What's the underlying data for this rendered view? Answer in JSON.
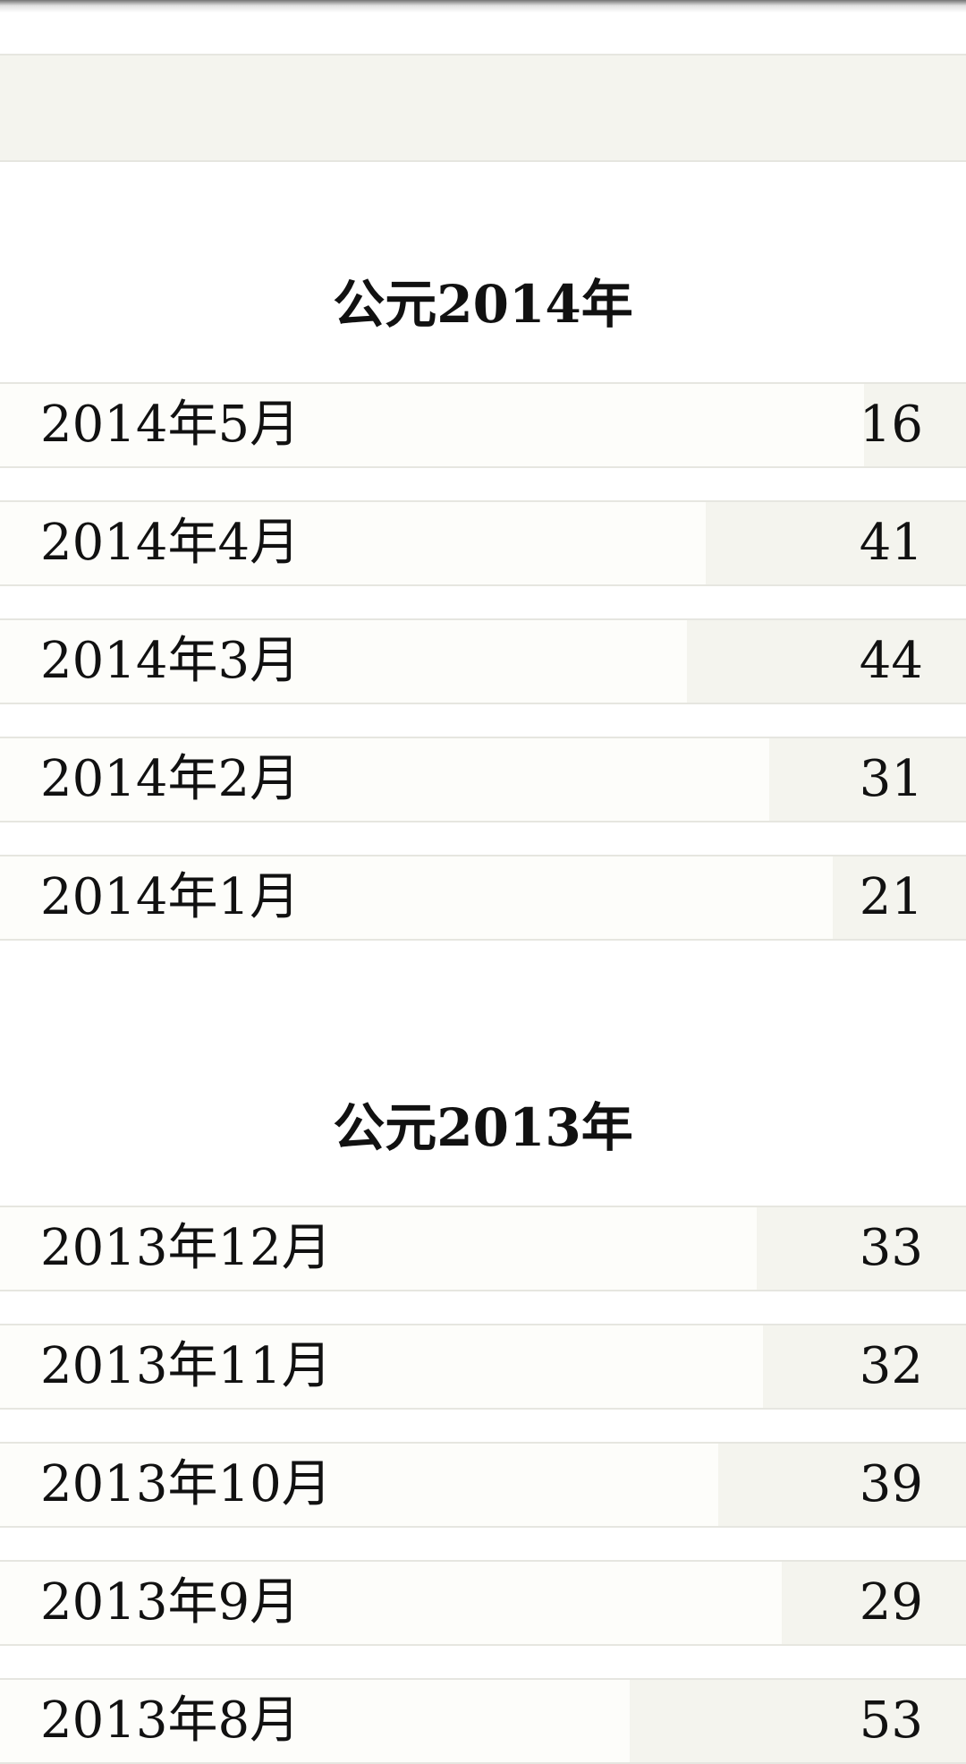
{
  "years": [
    {
      "title": "公元2014年",
      "months": [
        {
          "label": "2014年5月",
          "count": "16",
          "value": 16
        },
        {
          "label": "2014年4月",
          "count": "41",
          "value": 41
        },
        {
          "label": "2014年3月",
          "count": "44",
          "value": 44
        },
        {
          "label": "2014年2月",
          "count": "31",
          "value": 31
        },
        {
          "label": "2014年1月",
          "count": "21",
          "value": 21
        }
      ]
    },
    {
      "title": "公元2013年",
      "months": [
        {
          "label": "2013年12月",
          "count": "33",
          "value": 33
        },
        {
          "label": "2013年11月",
          "count": "32",
          "value": 32
        },
        {
          "label": "2013年10月",
          "count": "39",
          "value": 39
        },
        {
          "label": "2013年9月",
          "count": "29",
          "value": 29
        },
        {
          "label": "2013年8月",
          "count": "53",
          "value": 53
        }
      ]
    }
  ]
}
